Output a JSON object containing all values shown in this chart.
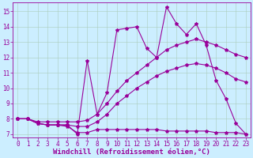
{
  "xlabel": "Windchill (Refroidissement éolien,°C)",
  "bg_color": "#cceeff",
  "line_color": "#990099",
  "grid_color": "#aaccbb",
  "xlim": [
    -0.5,
    23.5
  ],
  "ylim": [
    6.8,
    15.6
  ],
  "yticks": [
    7,
    8,
    9,
    10,
    11,
    12,
    13,
    14,
    15
  ],
  "xticks": [
    0,
    1,
    2,
    3,
    4,
    5,
    6,
    7,
    8,
    9,
    10,
    11,
    12,
    13,
    14,
    15,
    16,
    17,
    18,
    19,
    20,
    21,
    22,
    23
  ],
  "lines": [
    {
      "x": [
        0,
        1,
        2,
        3,
        4,
        5,
        6,
        7,
        8,
        9,
        10,
        11,
        12,
        13,
        14,
        15,
        16,
        17,
        18,
        19,
        20,
        21,
        22,
        23
      ],
      "y": [
        8.0,
        8.0,
        7.7,
        7.6,
        7.6,
        7.6,
        7.0,
        11.8,
        8.3,
        9.7,
        13.8,
        13.9,
        14.0,
        12.6,
        12.0,
        15.3,
        14.2,
        13.5,
        14.2,
        12.8,
        10.5,
        9.3,
        7.7,
        7.0
      ]
    },
    {
      "x": [
        0,
        1,
        2,
        3,
        4,
        5,
        6,
        7,
        8,
        9,
        10,
        11,
        12,
        13,
        14,
        15,
        16,
        17,
        18,
        19,
        20,
        21,
        22,
        23
      ],
      "y": [
        8.0,
        8.0,
        7.8,
        7.8,
        7.8,
        7.8,
        7.8,
        7.9,
        8.3,
        9.0,
        9.8,
        10.5,
        11.0,
        11.5,
        12.0,
        12.5,
        12.8,
        13.0,
        13.2,
        13.0,
        12.8,
        12.5,
        12.2,
        12.0
      ]
    },
    {
      "x": [
        0,
        1,
        2,
        3,
        4,
        5,
        6,
        7,
        8,
        9,
        10,
        11,
        12,
        13,
        14,
        15,
        16,
        17,
        18,
        19,
        20,
        21,
        22,
        23
      ],
      "y": [
        8.0,
        8.0,
        7.7,
        7.6,
        7.6,
        7.6,
        7.5,
        7.5,
        7.8,
        8.3,
        9.0,
        9.5,
        10.0,
        10.4,
        10.8,
        11.1,
        11.3,
        11.5,
        11.6,
        11.5,
        11.3,
        11.0,
        10.6,
        10.4
      ]
    },
    {
      "x": [
        0,
        1,
        2,
        3,
        4,
        5,
        6,
        7,
        8,
        9,
        10,
        11,
        12,
        13,
        14,
        15,
        16,
        17,
        18,
        19,
        20,
        21,
        22,
        23
      ],
      "y": [
        8.0,
        8.0,
        7.7,
        7.6,
        7.6,
        7.5,
        7.1,
        7.1,
        7.3,
        7.3,
        7.3,
        7.3,
        7.3,
        7.3,
        7.3,
        7.2,
        7.2,
        7.2,
        7.2,
        7.2,
        7.1,
        7.1,
        7.1,
        7.0
      ]
    }
  ],
  "marker": "*",
  "markersize": 3,
  "linewidth": 0.8,
  "xlabel_fontsize": 6.5,
  "tick_fontsize": 5.5
}
